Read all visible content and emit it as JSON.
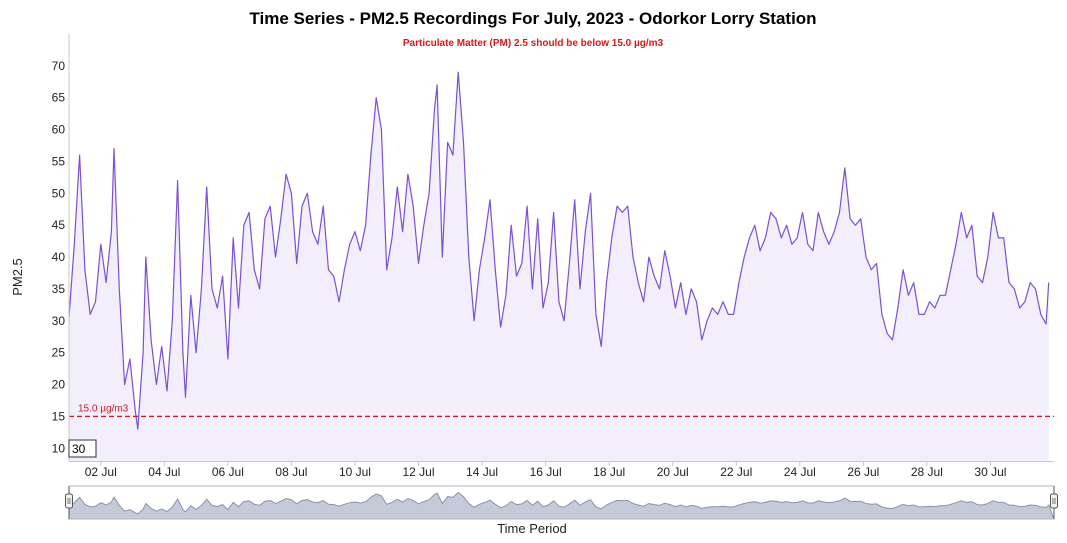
{
  "colors": {
    "line": "#7b4fd6",
    "area": "#f2eefb",
    "threshold": "#d7191c",
    "navigator_fill": "#c4cad8",
    "navigator_line": "#8a94aa"
  },
  "chart_data": {
    "type": "area",
    "title": "Time Series - PM2.5 Recordings For July, 2023 - Odorkor Lorry Station",
    "subtitle": "Particulate Matter (PM) 2.5 should be below 15.0 µg/m3",
    "ylabel": "PM2.5",
    "xlabel": "Time Period",
    "ylim": [
      8,
      75
    ],
    "xlim": [
      "2023-07-01",
      "2023-08-01"
    ],
    "y_ticks": [
      10,
      15,
      20,
      25,
      30,
      35,
      40,
      45,
      50,
      55,
      60,
      65,
      70
    ],
    "x_ticks": [
      "02 Jul",
      "04 Jul",
      "06 Jul",
      "08 Jul",
      "10 Jul",
      "12 Jul",
      "14 Jul",
      "16 Jul",
      "18 Jul",
      "20 Jul",
      "22 Jul",
      "24 Jul",
      "26 Jul",
      "28 Jul",
      "30 Jul"
    ],
    "grid": false,
    "threshold": {
      "value": 15,
      "label": "15.0 µg/m3"
    },
    "rolling_period": "30",
    "navigator": true,
    "series": [
      {
        "points": [
          [
            "2023-07-01T00:00",
            30.5
          ],
          [
            "2023-07-01T04:00",
            42
          ],
          [
            "2023-07-01T08:00",
            56
          ],
          [
            "2023-07-01T12:00",
            38
          ],
          [
            "2023-07-01T16:00",
            31
          ],
          [
            "2023-07-01T20:00",
            33
          ],
          [
            "2023-07-02T00:00",
            42
          ],
          [
            "2023-07-02T04:00",
            36
          ],
          [
            "2023-07-02T08:00",
            44
          ],
          [
            "2023-07-02T10:00",
            57
          ],
          [
            "2023-07-02T14:00",
            35
          ],
          [
            "2023-07-02T18:00",
            20
          ],
          [
            "2023-07-02T22:00",
            24
          ],
          [
            "2023-07-03T02:00",
            16
          ],
          [
            "2023-07-03T04:00",
            13
          ],
          [
            "2023-07-03T08:00",
            25
          ],
          [
            "2023-07-03T10:00",
            40
          ],
          [
            "2023-07-03T14:00",
            27
          ],
          [
            "2023-07-03T18:00",
            20
          ],
          [
            "2023-07-03T22:00",
            26
          ],
          [
            "2023-07-04T02:00",
            19
          ],
          [
            "2023-07-04T06:00",
            30
          ],
          [
            "2023-07-04T10:00",
            52
          ],
          [
            "2023-07-04T14:00",
            25
          ],
          [
            "2023-07-04T16:00",
            18
          ],
          [
            "2023-07-04T20:00",
            34
          ],
          [
            "2023-07-05T00:00",
            25
          ],
          [
            "2023-07-05T04:00",
            35
          ],
          [
            "2023-07-05T08:00",
            51
          ],
          [
            "2023-07-05T12:00",
            35
          ],
          [
            "2023-07-05T16:00",
            32
          ],
          [
            "2023-07-05T20:00",
            37
          ],
          [
            "2023-07-06T00:00",
            24
          ],
          [
            "2023-07-06T04:00",
            43
          ],
          [
            "2023-07-06T08:00",
            32
          ],
          [
            "2023-07-06T12:00",
            45
          ],
          [
            "2023-07-06T16:00",
            47
          ],
          [
            "2023-07-06T20:00",
            38
          ],
          [
            "2023-07-07T00:00",
            35
          ],
          [
            "2023-07-07T04:00",
            46
          ],
          [
            "2023-07-07T08:00",
            48
          ],
          [
            "2023-07-07T12:00",
            40
          ],
          [
            "2023-07-07T16:00",
            46
          ],
          [
            "2023-07-07T20:00",
            53
          ],
          [
            "2023-07-08T00:00",
            50
          ],
          [
            "2023-07-08T04:00",
            39
          ],
          [
            "2023-07-08T08:00",
            48
          ],
          [
            "2023-07-08T12:00",
            50
          ],
          [
            "2023-07-08T16:00",
            44
          ],
          [
            "2023-07-08T20:00",
            42
          ],
          [
            "2023-07-09T00:00",
            48
          ],
          [
            "2023-07-09T04:00",
            38
          ],
          [
            "2023-07-09T08:00",
            37
          ],
          [
            "2023-07-09T12:00",
            33
          ],
          [
            "2023-07-09T16:00",
            38
          ],
          [
            "2023-07-09T20:00",
            42
          ],
          [
            "2023-07-10T00:00",
            44
          ],
          [
            "2023-07-10T04:00",
            41
          ],
          [
            "2023-07-10T08:00",
            45
          ],
          [
            "2023-07-10T12:00",
            56
          ],
          [
            "2023-07-10T16:00",
            65
          ],
          [
            "2023-07-10T20:00",
            60
          ],
          [
            "2023-07-11T00:00",
            38
          ],
          [
            "2023-07-11T04:00",
            43
          ],
          [
            "2023-07-11T08:00",
            51
          ],
          [
            "2023-07-11T12:00",
            44
          ],
          [
            "2023-07-11T16:00",
            53
          ],
          [
            "2023-07-11T20:00",
            48
          ],
          [
            "2023-07-12T00:00",
            39
          ],
          [
            "2023-07-12T04:00",
            45
          ],
          [
            "2023-07-12T08:00",
            50
          ],
          [
            "2023-07-12T12:00",
            63
          ],
          [
            "2023-07-12T14:00",
            67
          ],
          [
            "2023-07-12T18:00",
            40
          ],
          [
            "2023-07-12T22:00",
            58
          ],
          [
            "2023-07-13T02:00",
            56
          ],
          [
            "2023-07-13T06:00",
            69
          ],
          [
            "2023-07-13T10:00",
            58
          ],
          [
            "2023-07-13T14:00",
            40
          ],
          [
            "2023-07-13T18:00",
            30
          ],
          [
            "2023-07-13T22:00",
            38
          ],
          [
            "2023-07-14T02:00",
            43
          ],
          [
            "2023-07-14T06:00",
            49
          ],
          [
            "2023-07-14T10:00",
            38
          ],
          [
            "2023-07-14T14:00",
            29
          ],
          [
            "2023-07-14T18:00",
            34
          ],
          [
            "2023-07-14T22:00",
            45
          ],
          [
            "2023-07-15T02:00",
            37
          ],
          [
            "2023-07-15T06:00",
            39
          ],
          [
            "2023-07-15T10:00",
            48
          ],
          [
            "2023-07-15T14:00",
            35
          ],
          [
            "2023-07-15T18:00",
            46
          ],
          [
            "2023-07-15T22:00",
            32
          ],
          [
            "2023-07-16T02:00",
            36
          ],
          [
            "2023-07-16T06:00",
            47
          ],
          [
            "2023-07-16T10:00",
            33
          ],
          [
            "2023-07-16T14:00",
            30
          ],
          [
            "2023-07-16T18:00",
            39
          ],
          [
            "2023-07-16T22:00",
            49
          ],
          [
            "2023-07-17T02:00",
            35
          ],
          [
            "2023-07-17T06:00",
            44
          ],
          [
            "2023-07-17T10:00",
            50
          ],
          [
            "2023-07-17T14:00",
            31
          ],
          [
            "2023-07-17T18:00",
            26
          ],
          [
            "2023-07-17T22:00",
            36
          ],
          [
            "2023-07-18T02:00",
            43
          ],
          [
            "2023-07-18T06:00",
            48
          ],
          [
            "2023-07-18T10:00",
            47
          ],
          [
            "2023-07-18T14:00",
            48
          ],
          [
            "2023-07-18T18:00",
            40
          ],
          [
            "2023-07-18T22:00",
            36
          ],
          [
            "2023-07-19T02:00",
            33
          ],
          [
            "2023-07-19T06:00",
            40
          ],
          [
            "2023-07-19T10:00",
            37
          ],
          [
            "2023-07-19T14:00",
            35
          ],
          [
            "2023-07-19T18:00",
            41
          ],
          [
            "2023-07-19T22:00",
            37
          ],
          [
            "2023-07-20T02:00",
            32
          ],
          [
            "2023-07-20T06:00",
            36
          ],
          [
            "2023-07-20T10:00",
            31
          ],
          [
            "2023-07-20T14:00",
            35
          ],
          [
            "2023-07-20T18:00",
            33
          ],
          [
            "2023-07-20T22:00",
            27
          ],
          [
            "2023-07-21T02:00",
            30
          ],
          [
            "2023-07-21T06:00",
            32
          ],
          [
            "2023-07-21T10:00",
            31
          ],
          [
            "2023-07-21T14:00",
            33
          ],
          [
            "2023-07-21T18:00",
            31
          ],
          [
            "2023-07-21T22:00",
            31
          ],
          [
            "2023-07-22T02:00",
            36
          ],
          [
            "2023-07-22T06:00",
            40
          ],
          [
            "2023-07-22T10:00",
            43
          ],
          [
            "2023-07-22T14:00",
            45
          ],
          [
            "2023-07-22T18:00",
            41
          ],
          [
            "2023-07-22T22:00",
            43
          ],
          [
            "2023-07-23T02:00",
            47
          ],
          [
            "2023-07-23T06:00",
            46
          ],
          [
            "2023-07-23T10:00",
            43
          ],
          [
            "2023-07-23T14:00",
            45
          ],
          [
            "2023-07-23T18:00",
            42
          ],
          [
            "2023-07-23T22:00",
            43
          ],
          [
            "2023-07-24T02:00",
            47
          ],
          [
            "2023-07-24T06:00",
            42
          ],
          [
            "2023-07-24T10:00",
            41
          ],
          [
            "2023-07-24T14:00",
            47
          ],
          [
            "2023-07-24T18:00",
            44
          ],
          [
            "2023-07-24T22:00",
            42
          ],
          [
            "2023-07-25T02:00",
            44
          ],
          [
            "2023-07-25T06:00",
            47
          ],
          [
            "2023-07-25T10:00",
            54
          ],
          [
            "2023-07-25T14:00",
            46
          ],
          [
            "2023-07-25T18:00",
            45
          ],
          [
            "2023-07-25T22:00",
            46
          ],
          [
            "2023-07-26T02:00",
            40
          ],
          [
            "2023-07-26T06:00",
            38
          ],
          [
            "2023-07-26T10:00",
            39
          ],
          [
            "2023-07-26T14:00",
            31
          ],
          [
            "2023-07-26T18:00",
            28
          ],
          [
            "2023-07-26T22:00",
            27
          ],
          [
            "2023-07-27T02:00",
            32
          ],
          [
            "2023-07-27T06:00",
            38
          ],
          [
            "2023-07-27T10:00",
            34
          ],
          [
            "2023-07-27T14:00",
            36
          ],
          [
            "2023-07-27T18:00",
            31
          ],
          [
            "2023-07-27T22:00",
            31
          ],
          [
            "2023-07-28T02:00",
            33
          ],
          [
            "2023-07-28T06:00",
            32
          ],
          [
            "2023-07-28T10:00",
            34
          ],
          [
            "2023-07-28T14:00",
            34
          ],
          [
            "2023-07-28T18:00",
            38
          ],
          [
            "2023-07-28T22:00",
            42
          ],
          [
            "2023-07-29T02:00",
            47
          ],
          [
            "2023-07-29T06:00",
            43
          ],
          [
            "2023-07-29T10:00",
            45
          ],
          [
            "2023-07-29T14:00",
            37
          ],
          [
            "2023-07-29T18:00",
            36
          ],
          [
            "2023-07-29T22:00",
            40
          ],
          [
            "2023-07-30T02:00",
            47
          ],
          [
            "2023-07-30T06:00",
            43
          ],
          [
            "2023-07-30T10:00",
            43
          ],
          [
            "2023-07-30T14:00",
            36
          ],
          [
            "2023-07-30T18:00",
            35
          ],
          [
            "2023-07-30T22:00",
            32
          ],
          [
            "2023-07-31T02:00",
            33
          ],
          [
            "2023-07-31T06:00",
            36
          ],
          [
            "2023-07-31T10:00",
            35
          ],
          [
            "2023-07-31T14:00",
            31
          ],
          [
            "2023-07-31T18:00",
            29.5
          ],
          [
            "2023-07-31T20:00",
            36
          ]
        ]
      }
    ]
  }
}
